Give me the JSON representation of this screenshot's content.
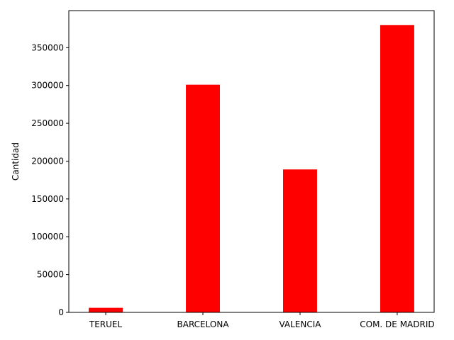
{
  "chart_data": {
    "type": "bar",
    "categories": [
      "TERUEL",
      "BARCELONA",
      "VALENCIA",
      "COM. DE MADRID"
    ],
    "values": [
      6000,
      301000,
      189000,
      380000
    ],
    "title": "",
    "xlabel": "",
    "ylabel": "Cantidad",
    "ylim": [
      0,
      399000
    ],
    "yticks": [
      0,
      50000,
      100000,
      150000,
      200000,
      250000,
      300000,
      350000
    ],
    "bar_color": "#ff0000",
    "grid": false,
    "legend": "none"
  }
}
